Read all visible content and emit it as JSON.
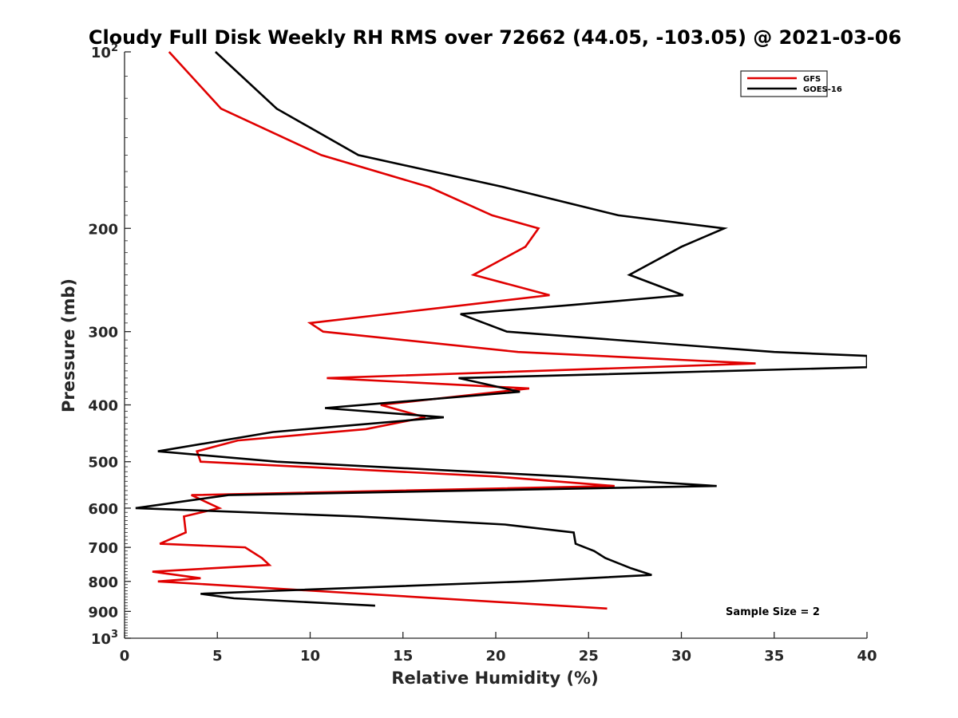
{
  "chart_data": {
    "type": "line",
    "title": "Cloudy Full Disk Weekly RH RMS over 72662 (44.05, -103.05) @ 2021-03-06",
    "xlabel": "Relative Humidity (%)",
    "ylabel": "Pressure (mb)",
    "xlim": [
      0,
      40
    ],
    "ylim": [
      100,
      1000
    ],
    "y_scale": "log",
    "y_reversed": true,
    "x_ticks": [
      0,
      5,
      10,
      15,
      20,
      25,
      30,
      35,
      40
    ],
    "y_ticks": [
      {
        "value": 100,
        "base": "10",
        "exp": "2"
      },
      {
        "value": 200,
        "label": "200"
      },
      {
        "value": 300,
        "label": "300"
      },
      {
        "value": 400,
        "label": "400"
      },
      {
        "value": 500,
        "label": "500"
      },
      {
        "value": 600,
        "label": "600"
      },
      {
        "value": 700,
        "label": "700"
      },
      {
        "value": 800,
        "label": "800"
      },
      {
        "value": 900,
        "label": "900"
      },
      {
        "value": 1000,
        "base": "10",
        "exp": "3"
      }
    ],
    "grid": false,
    "legend_position": "top-right",
    "annotation": "Sample Size = 2",
    "series": [
      {
        "name": "GFS",
        "color": "#e00000",
        "points": [
          [
            2.4,
            100
          ],
          [
            5.2,
            125
          ],
          [
            10.6,
            150
          ],
          [
            16.4,
            170
          ],
          [
            19.8,
            190
          ],
          [
            22.3,
            200
          ],
          [
            21.6,
            215
          ],
          [
            18.8,
            240
          ],
          [
            22.9,
            260
          ],
          [
            10.0,
            290
          ],
          [
            10.7,
            300
          ],
          [
            21.2,
            325
          ],
          [
            34.0,
            340
          ],
          [
            10.9,
            360
          ],
          [
            21.8,
            375
          ],
          [
            13.8,
            400
          ],
          [
            16.2,
            420
          ],
          [
            13.0,
            440
          ],
          [
            6.1,
            460
          ],
          [
            3.9,
            480
          ],
          [
            4.1,
            500
          ],
          [
            20.0,
            530
          ],
          [
            26.4,
            550
          ],
          [
            3.6,
            570
          ],
          [
            5.1,
            600
          ],
          [
            3.2,
            620
          ],
          [
            3.3,
            660
          ],
          [
            1.9,
            690
          ],
          [
            6.5,
            700
          ],
          [
            7.4,
            730
          ],
          [
            7.8,
            750
          ],
          [
            1.5,
            770
          ],
          [
            4.1,
            790
          ],
          [
            1.8,
            800
          ],
          [
            26.0,
            890
          ]
        ]
      },
      {
        "name": "GOES-16",
        "color": "#000000",
        "points": [
          [
            4.9,
            100
          ],
          [
            8.2,
            125
          ],
          [
            12.6,
            150
          ],
          [
            20.4,
            170
          ],
          [
            26.6,
            190
          ],
          [
            32.3,
            200
          ],
          [
            30.0,
            215
          ],
          [
            27.2,
            240
          ],
          [
            30.1,
            260
          ],
          [
            24.2,
            270
          ],
          [
            18.1,
            280
          ],
          [
            20.6,
            300
          ],
          [
            35.0,
            325
          ],
          [
            40.0,
            330
          ],
          [
            40.0,
            345
          ],
          [
            18.0,
            360
          ],
          [
            21.3,
            380
          ],
          [
            10.8,
            405
          ],
          [
            17.2,
            420
          ],
          [
            8.0,
            445
          ],
          [
            1.8,
            480
          ],
          [
            8.2,
            500
          ],
          [
            23.8,
            530
          ],
          [
            31.9,
            550
          ],
          [
            5.6,
            570
          ],
          [
            3.9,
            580
          ],
          [
            0.6,
            600
          ],
          [
            12.6,
            620
          ],
          [
            20.5,
            640
          ],
          [
            24.2,
            660
          ],
          [
            24.3,
            690
          ],
          [
            25.3,
            710
          ],
          [
            25.9,
            730
          ],
          [
            27.3,
            760
          ],
          [
            28.4,
            780
          ],
          [
            21.6,
            800
          ],
          [
            8.2,
            830
          ],
          [
            4.1,
            840
          ],
          [
            5.9,
            855
          ],
          [
            13.5,
            880
          ]
        ]
      }
    ]
  }
}
